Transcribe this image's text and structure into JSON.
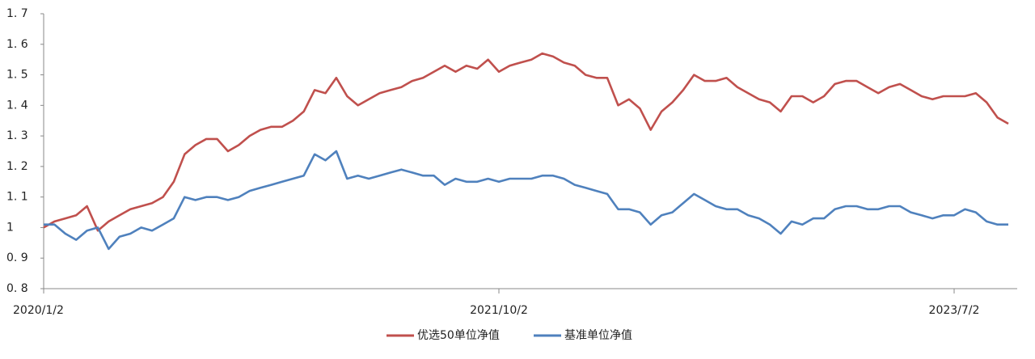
{
  "chart_data": {
    "type": "line",
    "categories": [
      "2020/1/2",
      null,
      null,
      null,
      null,
      null,
      null,
      null,
      null,
      null,
      null,
      null,
      null,
      null,
      null,
      null,
      null,
      null,
      null,
      null,
      null,
      null,
      null,
      null,
      null,
      null,
      null,
      null,
      null,
      null,
      null,
      null,
      null,
      null,
      null,
      null,
      null,
      null,
      null,
      null,
      null,
      null,
      "2021/10/2",
      null,
      null,
      null,
      null,
      null,
      null,
      null,
      null,
      null,
      null,
      null,
      null,
      null,
      null,
      null,
      null,
      null,
      null,
      null,
      null,
      null,
      null,
      null,
      null,
      null,
      null,
      null,
      null,
      null,
      null,
      null,
      null,
      null,
      null,
      null,
      null,
      null,
      null,
      null,
      null,
      null,
      "2023/7/2",
      null,
      null,
      null,
      null,
      null
    ],
    "series": [
      {
        "name": "优选50单位净值",
        "color": "#c0504d",
        "values": [
          1.0,
          1.02,
          1.03,
          1.04,
          1.07,
          0.99,
          1.02,
          1.04,
          1.06,
          1.07,
          1.08,
          1.1,
          1.15,
          1.24,
          1.27,
          1.29,
          1.29,
          1.25,
          1.27,
          1.3,
          1.32,
          1.33,
          1.33,
          1.35,
          1.38,
          1.45,
          1.44,
          1.49,
          1.43,
          1.4,
          1.42,
          1.44,
          1.45,
          1.46,
          1.48,
          1.49,
          1.51,
          1.53,
          1.51,
          1.53,
          1.52,
          1.55,
          1.51,
          1.53,
          1.54,
          1.55,
          1.57,
          1.56,
          1.54,
          1.53,
          1.5,
          1.49,
          1.49,
          1.4,
          1.42,
          1.39,
          1.32,
          1.38,
          1.41,
          1.45,
          1.5,
          1.48,
          1.48,
          1.49,
          1.46,
          1.44,
          1.42,
          1.41,
          1.38,
          1.43,
          1.43,
          1.41,
          1.43,
          1.47,
          1.48,
          1.48,
          1.46,
          1.44,
          1.46,
          1.47,
          1.45,
          1.43,
          1.42,
          1.43,
          1.43,
          1.43,
          1.44,
          1.41,
          1.36,
          1.34
        ]
      },
      {
        "name": "基准单位净值",
        "color": "#4f81bd",
        "values": [
          1.01,
          1.01,
          0.98,
          0.96,
          0.99,
          1.0,
          0.93,
          0.97,
          0.98,
          1.0,
          0.99,
          1.01,
          1.03,
          1.1,
          1.09,
          1.1,
          1.1,
          1.09,
          1.1,
          1.12,
          1.13,
          1.14,
          1.15,
          1.16,
          1.17,
          1.24,
          1.22,
          1.25,
          1.16,
          1.17,
          1.16,
          1.17,
          1.18,
          1.19,
          1.18,
          1.17,
          1.17,
          1.14,
          1.16,
          1.15,
          1.15,
          1.16,
          1.15,
          1.16,
          1.16,
          1.16,
          1.17,
          1.17,
          1.16,
          1.14,
          1.13,
          1.12,
          1.11,
          1.06,
          1.06,
          1.05,
          1.01,
          1.04,
          1.05,
          1.08,
          1.11,
          1.09,
          1.07,
          1.06,
          1.06,
          1.04,
          1.03,
          1.01,
          0.98,
          1.02,
          1.01,
          1.03,
          1.03,
          1.06,
          1.07,
          1.07,
          1.06,
          1.06,
          1.07,
          1.07,
          1.05,
          1.04,
          1.03,
          1.04,
          1.04,
          1.06,
          1.05,
          1.02,
          1.01,
          1.01
        ]
      }
    ],
    "ylim": [
      0.8,
      1.7
    ],
    "yticks": [
      {
        "value": 0.8,
        "label": "0. 8"
      },
      {
        "value": 0.9,
        "label": "0. 9"
      },
      1,
      {
        "value": 1.1,
        "label": "1. 1"
      },
      {
        "value": 1.2,
        "label": "1. 2"
      },
      {
        "value": 1.3,
        "label": "1. 3"
      },
      {
        "value": 1.4,
        "label": "1. 4"
      },
      {
        "value": 1.5,
        "label": "1. 5"
      },
      {
        "value": 1.6,
        "label": "1. 6"
      },
      {
        "value": 1.7,
        "label": "1. 7"
      }
    ],
    "grid": false,
    "legend": "bottom"
  }
}
